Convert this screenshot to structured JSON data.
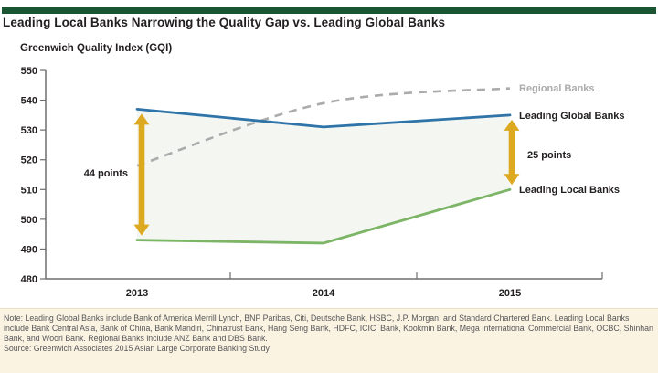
{
  "header": {
    "title": "Leading Local Banks Narrowing the Quality Gap vs. Leading Global Banks",
    "accent_color": "#1a5632"
  },
  "chart_data": {
    "type": "line",
    "title": "Greenwich Quality Index (GQI)",
    "categories": [
      "2013",
      "2014",
      "2015"
    ],
    "series": [
      {
        "name": "Regional Banks",
        "values": [
          518,
          539,
          544
        ],
        "color": "#ababab",
        "style": "dashed"
      },
      {
        "name": "Leading Global Banks",
        "values": [
          537,
          531,
          535
        ],
        "color": "#2e74a8",
        "style": "solid"
      },
      {
        "name": "Leading Local Banks",
        "values": [
          493,
          492,
          510
        ],
        "color": "#7cb566",
        "style": "solid"
      }
    ],
    "ylim": [
      480,
      550
    ],
    "yticks": [
      480,
      490,
      500,
      510,
      520,
      530,
      540,
      550
    ],
    "grid": false,
    "legend_position": "right-of-line-ends",
    "fill_between": {
      "upper": "Leading Global Banks",
      "lower": "Leading Local Banks",
      "color": "#f4f6f2"
    },
    "annotations": [
      {
        "label": "44 points",
        "category": "2013",
        "from": 537,
        "to": 493,
        "side": "left"
      },
      {
        "label": "25 points",
        "category": "2015",
        "from": 535,
        "to": 510,
        "side": "right"
      }
    ],
    "arrow_color": "#dca920",
    "axis_color": "#6d6e71"
  },
  "footer": {
    "note": "Note: Leading Global Banks include Bank of America Merrill Lynch, BNP Paribas, Citi, Deutsche Bank, HSBC, J.P. Morgan, and Standard Chartered Bank. Leading Local Banks include Bank Central Asia, Bank of China, Bank Mandiri, Chinatrust Bank, Hang Seng Bank, HDFC, ICICI Bank, Kookmin Bank, Mega International Commercial Bank, OCBC, Shinhan Bank, and Woori Bank. Regional Banks include ANZ Bank and DBS Bank.",
    "source": "Source: Greenwich Associates 2015 Asian Large Corporate Banking Study",
    "bg_color": "#fbf3e2"
  }
}
